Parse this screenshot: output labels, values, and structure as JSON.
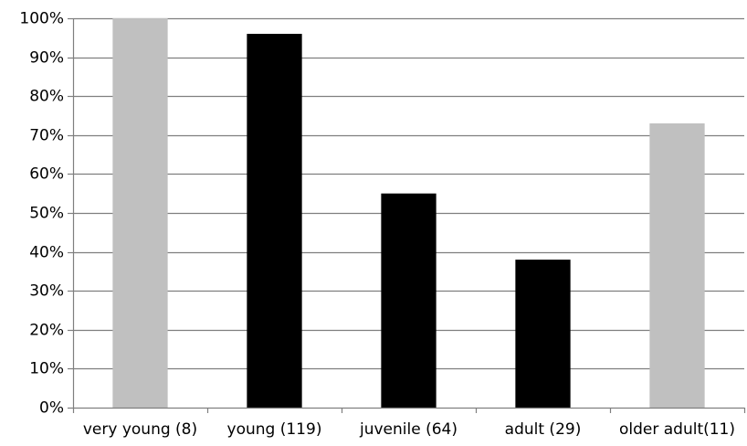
{
  "chart_data": {
    "type": "bar",
    "categories": [
      "very young (8)",
      "young (119)",
      "juvenile (64)",
      "adult (29)",
      "older adult(11)"
    ],
    "values": [
      100,
      96,
      55,
      38,
      73
    ],
    "bar_colors": [
      "#c0c0c0",
      "#000000",
      "#000000",
      "#000000",
      "#c0c0c0"
    ],
    "ylim": [
      0,
      100
    ],
    "yticks": [
      0,
      10,
      20,
      30,
      40,
      50,
      60,
      70,
      80,
      90,
      100
    ],
    "ytick_labels": [
      "0%",
      "10%",
      "20%",
      "30%",
      "40%",
      "50%",
      "60%",
      "70%",
      "80%",
      "90%",
      "100%"
    ],
    "grid": true,
    "grid_color": "#7f7f7f",
    "title": "",
    "xlabel": "",
    "ylabel": ""
  }
}
